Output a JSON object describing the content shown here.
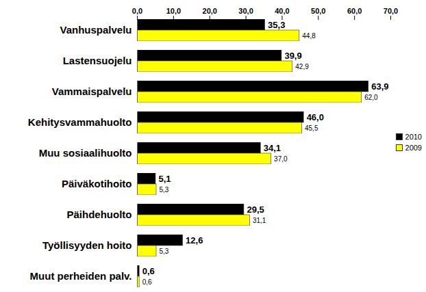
{
  "chart_data": {
    "type": "bar",
    "orientation": "horizontal",
    "categories": [
      "Vanhuspalvelu",
      "Lastensuojelu",
      "Vammaispalvelu",
      "Kehitysvammahuolto",
      "Muu sosiaalihuolto",
      "Päiväkotihoito",
      "Päihdehuolto",
      "Työllisyyden hoito",
      "Muut perheiden palv."
    ],
    "series": [
      {
        "name": "2010",
        "color": "#000000",
        "values": [
          35.3,
          39.9,
          63.9,
          46.0,
          34.1,
          5.1,
          29.5,
          12.6,
          0.6
        ],
        "value_labels": [
          "35,3",
          "39,9",
          "63,9",
          "46,0",
          "34,1",
          "5,1",
          "29,5",
          "12,6",
          "0,6"
        ]
      },
      {
        "name": "2009",
        "color": "#ffff00",
        "values": [
          44.8,
          42.9,
          62.0,
          45.5,
          37.0,
          5.3,
          31.1,
          5.3,
          0.6
        ],
        "value_labels": [
          "44,8",
          "42,9",
          "62,0",
          "45,5",
          "37,0",
          "5,3",
          "31,1",
          "5,3",
          "0,6"
        ]
      }
    ],
    "xlim": [
      0,
      70
    ],
    "xticks": [
      {
        "value": 0,
        "label": "0,0"
      },
      {
        "value": 10,
        "label": "10,0"
      },
      {
        "value": 20,
        "label": "20,0"
      },
      {
        "value": 30,
        "label": "30,0"
      },
      {
        "value": 40,
        "label": "40,0"
      },
      {
        "value": 50,
        "label": "50,0"
      },
      {
        "value": 60,
        "label": "60,0"
      },
      {
        "value": 70,
        "label": "70,0"
      }
    ],
    "grid": false,
    "legend": "right",
    "data_labels": true
  }
}
